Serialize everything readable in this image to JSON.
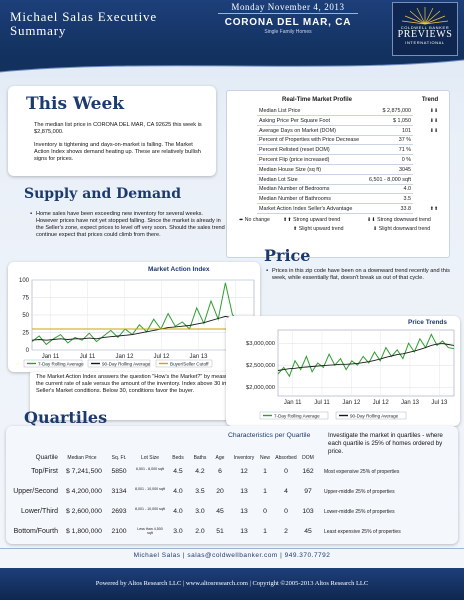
{
  "header": {
    "title": "Michael Salas Executive Summary",
    "date": "Monday November 4, 2013",
    "city": "CORONA DEL MAR, CA",
    "property_type": "Single Family Homes",
    "logo_line1": "COLDWELL BANKER",
    "logo_line2": "PREVIEWS",
    "logo_line3": "INTERNATIONAL"
  },
  "this_week": {
    "heading": "This Week",
    "para1": "The median list price in CORONA DEL MAR, CA 92625 this week is $2,875,000.",
    "para2": "Inventory is tightening and days-on-market is falling. The Market Action Index shows demand heating up. These are relatively bullish signs for prices."
  },
  "market_profile": {
    "title": "Real-Time Market Profile",
    "trend_header": "Trend",
    "rows": [
      {
        "label": "Median List Price",
        "value": "$ 2,875,000",
        "trend": "⬇⬇"
      },
      {
        "label": "Asking Price Per Square Foot",
        "value": "$ 1,050",
        "trend": "⬇⬇"
      },
      {
        "label": "Average Days on Market (DOM)",
        "value": "101",
        "trend": "⬇⬇"
      },
      {
        "label": "Percent of Properties with Price Decrease",
        "value": "37 %",
        "trend": ""
      },
      {
        "label": "Percent Relisted (reset DOM)",
        "value": "71 %",
        "trend": ""
      },
      {
        "label": "Percent Flip (price increased)",
        "value": "0 %",
        "trend": ""
      },
      {
        "label": "Median House Size (sq ft)",
        "value": "3045",
        "trend": ""
      },
      {
        "label": "Median Lot Size",
        "value": "6,501 - 8,000 sqft",
        "trend": ""
      },
      {
        "label": "Median Number of Bedrooms",
        "value": "4.0",
        "trend": ""
      },
      {
        "label": "Median Number of Bathrooms",
        "value": "3.5",
        "trend": ""
      },
      {
        "label": "Market Action Index    Seller's Advantage",
        "value": "33.8",
        "trend": "⬆⬆"
      }
    ],
    "legend": {
      "no_change": "No change",
      "strong_up": "Strong upward trend",
      "strong_down": "Strong downward trend",
      "slight_up": "Slight upward trend",
      "slight_down": "Slight downward trend"
    }
  },
  "supply_demand": {
    "heading": "Supply and Demand",
    "text": "Home sales have been exceeding new inventory for several weeks. However prices have not yet stopped falling. Since the market is already in the Seller's zone, expect prices to level off very soon. Should the sales trend continue expect that prices could climb from there.",
    "chart_title": "Market Action Index",
    "legend_7day": "7-Day Rolling Average",
    "legend_90day": "90-Day Rolling Average",
    "legend_cutoff": "Buyer/Seller Cutoff",
    "note": "The Market Action Index answers the question \"How's the Market?\" by measuring the current rate of sale versus the amount of the inventory.  Index above 30 implies Seller's Market conditions. Below 30, conditions favor the buyer."
  },
  "price": {
    "heading": "Price",
    "text": "Prices in this zip code have been on a downward trend recently and this week, while essentially flat, doesn't break us out of that cycle.",
    "chart_title": "Price Trends",
    "legend_7day": "7-Day Rolling Average",
    "legend_90day": "90-Day Rolling Average"
  },
  "quartiles": {
    "heading": "Quartiles",
    "chars_title": "Characteristics per Quartile",
    "side_note": "Investigate the market in quartiles - where each quartile is 25% of homes ordered by price.",
    "headers": [
      "Quartile",
      "Median Price",
      "Sq. Ft.",
      "Lot Size",
      "Beds",
      "Baths",
      "Age",
      "Inventory",
      "New",
      "Absorbed",
      "DOM"
    ],
    "rows": [
      {
        "q": "Top/First",
        "price": "$ 7,241,500",
        "sqft": "5850",
        "lot": "6,501 - 8,000 sqft",
        "beds": "4.5",
        "baths": "4.2",
        "age": "6",
        "inv": "12",
        "new": "1",
        "abs": "0",
        "dom": "162",
        "desc": "Most expensive 25% of properties"
      },
      {
        "q": "Upper/Second",
        "price": "$ 4,200,000",
        "sqft": "3134",
        "lot": "8,001 - 10,000 sqft",
        "beds": "4.0",
        "baths": "3.5",
        "age": "20",
        "inv": "13",
        "new": "1",
        "abs": "4",
        "dom": "97",
        "desc": "Upper-middle 25% of properties"
      },
      {
        "q": "Lower/Third",
        "price": "$ 2,600,000",
        "sqft": "2693",
        "lot": "8,001 - 10,000 sqft",
        "beds": "4.0",
        "baths": "3.0",
        "age": "45",
        "inv": "13",
        "new": "0",
        "abs": "0",
        "dom": "103",
        "desc": "Lower-middle 25% of properties"
      },
      {
        "q": "Bottom/Fourth",
        "price": "$ 1,800,000",
        "sqft": "2100",
        "lot": "Less than 4,500 sqft",
        "beds": "3.0",
        "baths": "2.0",
        "age": "51",
        "inv": "13",
        "new": "1",
        "abs": "2",
        "dom": "45",
        "desc": "Least expensive 25% of properties"
      }
    ]
  },
  "contact": "Michael Salas | salas@coldwellbanker.com | 949.370.7792",
  "footer": "Powered by Altos Research LLC | www.altosresearch.com | Copyright ©2005-2013 Altos Research LLC",
  "chart_data": [
    {
      "type": "line",
      "title": "Market Action Index",
      "x_ticks": [
        "Jan 11",
        "Jul 11",
        "Jan 12",
        "Jul 12",
        "Jan 13",
        "Jul 13"
      ],
      "ylim": [
        0,
        100
      ],
      "y_ticks": [
        0,
        25,
        50,
        75,
        100
      ],
      "grid": true,
      "legend_position": "bottom",
      "series": [
        {
          "name": "7-Day Rolling Average",
          "color": "#2e9e2e",
          "values": [
            12,
            20,
            8,
            16,
            22,
            10,
            18,
            14,
            24,
            12,
            20,
            28,
            18,
            30,
            22,
            36,
            26,
            44,
            30,
            52,
            34,
            40,
            30,
            60,
            38,
            70,
            44,
            96,
            50,
            42,
            36,
            34
          ]
        },
        {
          "name": "90-Day Rolling Average",
          "color": "#1a1a1a",
          "values": [
            14,
            15,
            14,
            15,
            16,
            15,
            16,
            16,
            17,
            16,
            18,
            19,
            20,
            21,
            22,
            24,
            26,
            28,
            30,
            32,
            33,
            34,
            35,
            37,
            39,
            42,
            45,
            48,
            46,
            42,
            38,
            35
          ]
        },
        {
          "name": "Buyer/Seller Cutoff",
          "color": "#c8a600",
          "values": [
            30,
            30,
            30,
            30,
            30,
            30,
            30,
            30,
            30,
            30,
            30,
            30,
            30,
            30,
            30,
            30,
            30,
            30,
            30,
            30,
            30,
            30,
            30,
            30,
            30,
            30,
            30,
            30,
            30,
            30,
            30,
            30
          ]
        }
      ]
    },
    {
      "type": "line",
      "title": "Price Trends",
      "x_ticks": [
        "Jan 11",
        "Jul 11",
        "Jan 12",
        "Jul 12",
        "Jan 13",
        "Jul 13"
      ],
      "ylim": [
        1800000,
        3300000
      ],
      "y_ticks": [
        "$2,000,000",
        "$2,500,000",
        "$3,000,000"
      ],
      "y_tick_values": [
        2000000,
        2500000,
        3000000
      ],
      "grid": true,
      "legend_position": "bottom",
      "series": [
        {
          "name": "7-Day Rolling Average",
          "color": "#2e9e2e",
          "values": [
            2300000,
            2450000,
            2250000,
            2600000,
            2400000,
            2700000,
            2350000,
            2550000,
            2450000,
            2750000,
            2500000,
            2650000,
            2400000,
            2600000,
            2500000,
            2700000,
            2550000,
            2800000,
            2600000,
            2900000,
            2700000,
            2850000,
            2650000,
            3000000,
            2800000,
            3100000,
            2900000,
            3200000,
            2950000,
            3050000,
            2900000,
            2875000
          ]
        },
        {
          "name": "90-Day Rolling Average",
          "color": "#1a1a1a",
          "values": [
            2380000,
            2400000,
            2420000,
            2430000,
            2450000,
            2460000,
            2470000,
            2480000,
            2490000,
            2500000,
            2510000,
            2520000,
            2520000,
            2530000,
            2540000,
            2560000,
            2580000,
            2610000,
            2640000,
            2680000,
            2710000,
            2740000,
            2760000,
            2790000,
            2820000,
            2860000,
            2900000,
            2950000,
            2980000,
            2990000,
            2970000,
            2950000
          ]
        }
      ]
    }
  ]
}
